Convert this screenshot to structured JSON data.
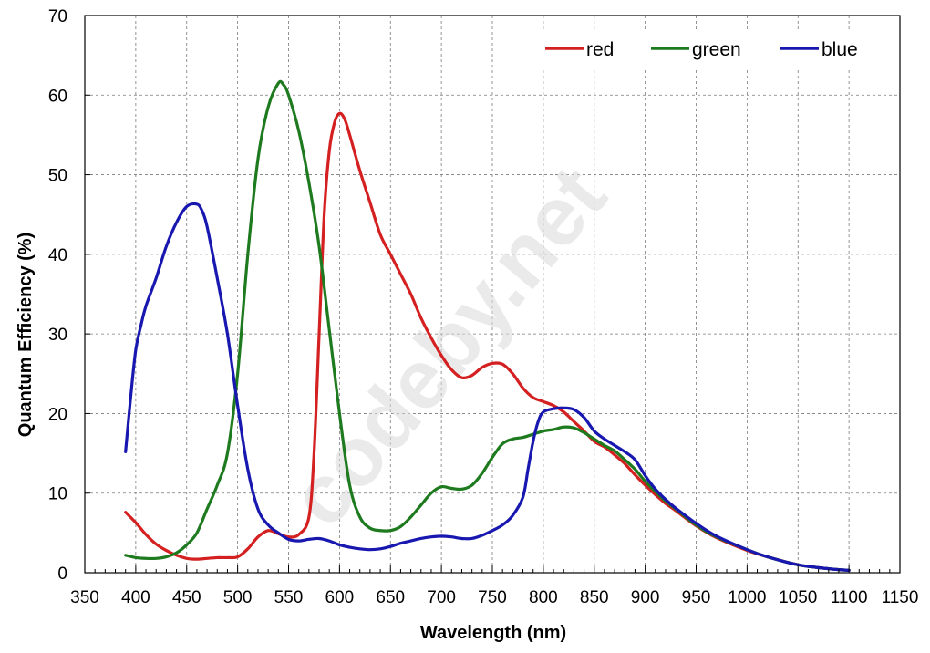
{
  "chart_data": {
    "type": "line",
    "title": "",
    "xlabel": "Wavelength (nm)",
    "ylabel": "Quantum Efficiency (%)",
    "xlim": [
      350,
      1150
    ],
    "ylim": [
      0,
      70
    ],
    "x_ticks": [
      350,
      400,
      450,
      500,
      550,
      600,
      650,
      700,
      750,
      800,
      850,
      900,
      950,
      1000,
      1050,
      1100,
      1150
    ],
    "y_ticks": [
      0,
      10,
      20,
      30,
      40,
      50,
      60,
      70
    ],
    "x_minor_step": 10,
    "grid": true,
    "grid_style": "dashed",
    "legend_position": "top-right",
    "watermark": "codeby.net",
    "series": [
      {
        "name": "red",
        "color": "#d42020",
        "x": [
          390,
          400,
          410,
          420,
          430,
          440,
          450,
          460,
          470,
          480,
          490,
          500,
          510,
          520,
          530,
          540,
          550,
          560,
          570,
          575,
          580,
          585,
          590,
          595,
          600,
          605,
          610,
          620,
          630,
          640,
          650,
          660,
          670,
          680,
          690,
          700,
          710,
          720,
          730,
          740,
          750,
          760,
          770,
          780,
          790,
          800,
          810,
          820,
          830,
          840,
          850,
          860,
          870,
          880,
          890,
          900,
          910,
          920,
          930,
          950,
          970,
          1000,
          1020,
          1050,
          1080,
          1100
        ],
        "y": [
          7.6,
          6.3,
          4.8,
          3.6,
          2.8,
          2.2,
          1.8,
          1.7,
          1.8,
          1.9,
          1.9,
          2.0,
          3.0,
          4.5,
          5.3,
          4.9,
          4.5,
          4.8,
          7.0,
          15,
          30,
          45,
          53,
          56.5,
          57.7,
          57.0,
          55,
          50.5,
          46.5,
          42.5,
          40,
          37.5,
          35,
          32,
          29.5,
          27.3,
          25.5,
          24.5,
          24.8,
          25.8,
          26.3,
          26.2,
          25.0,
          23.2,
          22.0,
          21.5,
          21.0,
          20.2,
          19.0,
          17.8,
          16.5,
          15.8,
          14.8,
          13.7,
          12.3,
          11.0,
          9.8,
          8.7,
          7.8,
          5.9,
          4.4,
          2.8,
          2.0,
          1.0,
          0.5,
          0.3
        ]
      },
      {
        "name": "green",
        "color": "#1e7a1e",
        "x": [
          390,
          400,
          410,
          420,
          430,
          440,
          450,
          460,
          470,
          480,
          490,
          500,
          510,
          520,
          530,
          540,
          545,
          550,
          560,
          570,
          580,
          590,
          600,
          610,
          620,
          630,
          640,
          650,
          660,
          670,
          680,
          690,
          700,
          710,
          720,
          730,
          740,
          750,
          760,
          770,
          780,
          790,
          800,
          810,
          820,
          830,
          840,
          850,
          860,
          870,
          880,
          890,
          900,
          910,
          920,
          930,
          950,
          970,
          1000,
          1020,
          1050,
          1080,
          1100
        ],
        "y": [
          2.2,
          1.9,
          1.8,
          1.8,
          2.0,
          2.5,
          3.5,
          5.0,
          8.0,
          11.0,
          15.0,
          25.0,
          40.0,
          52.0,
          58.5,
          61.5,
          61.3,
          60.0,
          55.5,
          49.0,
          41.0,
          30.5,
          20.0,
          11.0,
          7.0,
          5.6,
          5.3,
          5.3,
          5.8,
          7.0,
          8.5,
          10.0,
          10.8,
          10.6,
          10.5,
          11.0,
          12.5,
          14.5,
          16.2,
          16.8,
          17.0,
          17.4,
          17.8,
          18.0,
          18.3,
          18.2,
          17.6,
          16.8,
          16.0,
          15.3,
          14.2,
          13.0,
          11.5,
          10.2,
          9.0,
          8.0,
          6.0,
          4.5,
          2.9,
          2.0,
          1.0,
          0.5,
          0.3
        ]
      },
      {
        "name": "blue",
        "color": "#1818b0",
        "x": [
          390,
          395,
          400,
          405,
          410,
          420,
          430,
          440,
          450,
          460,
          465,
          470,
          480,
          490,
          500,
          510,
          520,
          530,
          540,
          550,
          560,
          570,
          580,
          590,
          600,
          610,
          620,
          630,
          640,
          650,
          660,
          670,
          680,
          690,
          700,
          710,
          720,
          730,
          740,
          750,
          760,
          770,
          780,
          785,
          790,
          795,
          800,
          810,
          820,
          830,
          840,
          850,
          860,
          870,
          880,
          890,
          900,
          910,
          920,
          930,
          950,
          970,
          1000,
          1020,
          1050,
          1080,
          1100
        ],
        "y": [
          15.2,
          22.0,
          28.0,
          31.0,
          33.5,
          37.0,
          41.0,
          44.0,
          46.0,
          46.3,
          45.5,
          43.5,
          37.0,
          30.0,
          21.0,
          13.0,
          8.0,
          6.0,
          5.0,
          4.2,
          4.0,
          4.2,
          4.3,
          4.0,
          3.5,
          3.2,
          3.0,
          2.9,
          3.0,
          3.3,
          3.7,
          4.0,
          4.3,
          4.5,
          4.6,
          4.5,
          4.3,
          4.3,
          4.7,
          5.3,
          6.0,
          7.2,
          9.5,
          13.0,
          16.5,
          19.0,
          20.2,
          20.6,
          20.7,
          20.5,
          19.5,
          17.8,
          16.8,
          16.0,
          15.2,
          14.2,
          12.2,
          10.5,
          9.2,
          8.1,
          6.2,
          4.6,
          2.9,
          2.0,
          1.0,
          0.5,
          0.3
        ]
      }
    ]
  }
}
